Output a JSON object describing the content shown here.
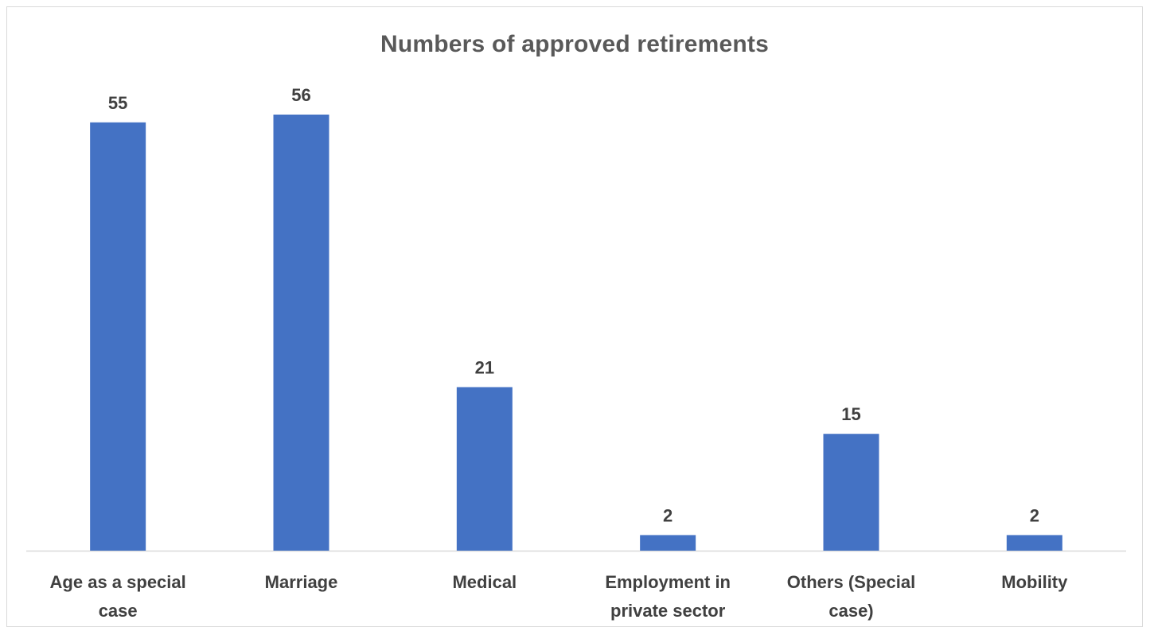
{
  "chart_data": {
    "type": "bar",
    "title": "Numbers of approved retirements",
    "categories": [
      [
        "Age as a special",
        "case"
      ],
      [
        "Marriage"
      ],
      [
        "Medical"
      ],
      [
        "Employment in",
        "private sector"
      ],
      [
        "Others (Special",
        "case)"
      ],
      [
        "Mobility"
      ]
    ],
    "values": [
      55,
      56,
      21,
      2,
      15,
      2
    ],
    "xlabel": "",
    "ylabel": "",
    "ylim": [
      0,
      56
    ],
    "grid": false,
    "legend": "none",
    "bar_color": "#4472C4",
    "axis_color": "#d9d9d9",
    "text_color": "#404040",
    "title_color": "#595959"
  }
}
